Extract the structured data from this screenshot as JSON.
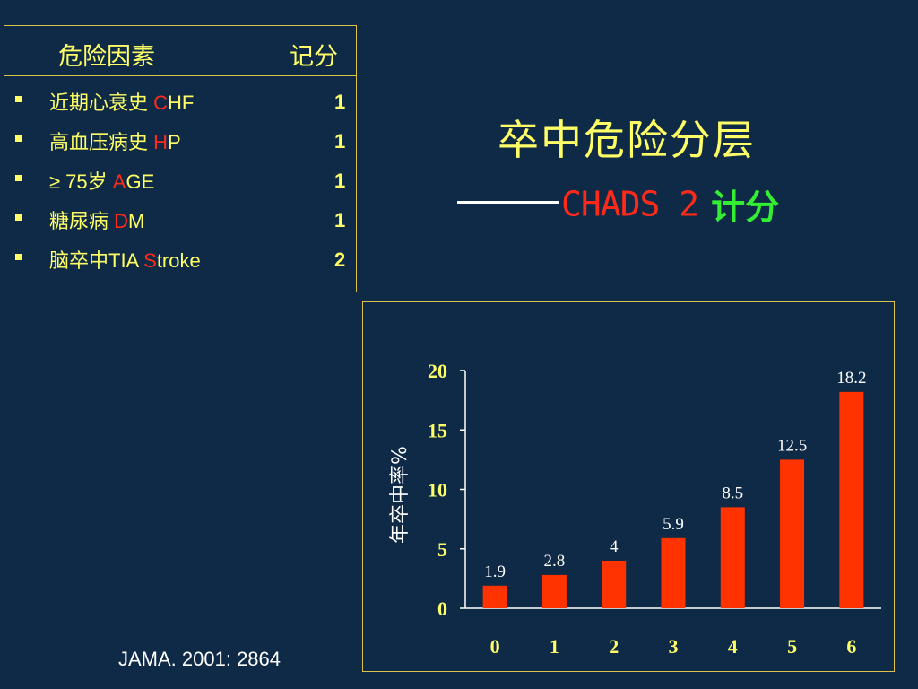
{
  "table": {
    "header_factor": "危险因素",
    "header_score": "记分",
    "rows": [
      {
        "label": "近期心衰史 ",
        "code": "C",
        "rest": "HF",
        "score": "1"
      },
      {
        "label": "高血压病史 ",
        "code": "H",
        "rest": "P",
        "score": "1"
      },
      {
        "label": "≥ 75岁    ",
        "code": "A",
        "rest": "GE",
        "score": "1"
      },
      {
        "label": "糖尿病     ",
        "code": "D",
        "rest": "M",
        "score": "1"
      },
      {
        "label": "脑卒中TIA  ",
        "code": "S",
        "rest": "troke",
        "score": "2"
      }
    ]
  },
  "title": "卒中危险分层",
  "subtitle_code": "CHADS 2",
  "subtitle_suffix": "计分",
  "citation": "JAMA. 2001: 2864",
  "colors": {
    "background": "#0e2a47",
    "text_yellow": "#ffff66",
    "accent_red": "#ff2a1a",
    "accent_green": "#33ee33",
    "bar": "#ff3300"
  },
  "chart_data": {
    "type": "bar",
    "categories": [
      "0",
      "1",
      "2",
      "3",
      "4",
      "5",
      "6"
    ],
    "values": [
      1.9,
      2.8,
      4,
      5.9,
      8.5,
      12.5,
      18.2
    ],
    "data_labels": [
      "1.9",
      "2.8",
      "4",
      "5.9",
      "8.5",
      "12.5",
      "18.2"
    ],
    "ylabel": "年卒中率%",
    "xlabel": "",
    "ylim": [
      0,
      20
    ],
    "yticks": [
      "0",
      "5",
      "10",
      "15",
      "20"
    ],
    "grid": false,
    "legend": "none"
  }
}
